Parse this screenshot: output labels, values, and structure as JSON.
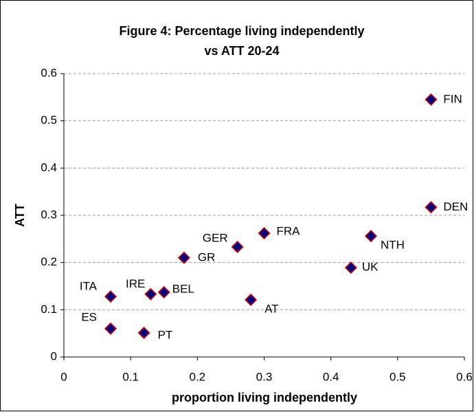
{
  "chart_data": {
    "type": "scatter",
    "title": [
      "Figure 4: Percentage living independently",
      "vs ATT 20-24"
    ],
    "x_label": "proportion living independently",
    "y_label": "ATT",
    "xlim": [
      0,
      0.6
    ],
    "xticks": [
      0,
      0.1,
      0.2,
      0.3,
      0.4,
      0.5,
      0.6
    ],
    "ylim": [
      0,
      0.6
    ],
    "yticks": [
      0,
      0.1,
      0.2,
      0.3,
      0.4,
      0.5,
      0.6
    ],
    "grid": true,
    "color": "#000080",
    "edge_color": "#cc0000",
    "points": [
      {
        "label": "FIN",
        "x": 0.55,
        "y": 0.545
      },
      {
        "label": "DEN",
        "x": 0.55,
        "y": 0.317
      },
      {
        "label": "NTH",
        "x": 0.46,
        "y": 0.256
      },
      {
        "label": "UK",
        "x": 0.43,
        "y": 0.189
      },
      {
        "label": "FRA",
        "x": 0.3,
        "y": 0.262
      },
      {
        "label": "GER",
        "x": 0.26,
        "y": 0.233
      },
      {
        "label": "GR",
        "x": 0.18,
        "y": 0.21
      },
      {
        "label": "ITA",
        "x": 0.07,
        "y": 0.128
      },
      {
        "label": "IRE",
        "x": 0.13,
        "y": 0.133
      },
      {
        "label": "BEL",
        "x": 0.15,
        "y": 0.137
      },
      {
        "label": "AT",
        "x": 0.28,
        "y": 0.121
      },
      {
        "label": "ES",
        "x": 0.07,
        "y": 0.06
      },
      {
        "label": "PT",
        "x": 0.12,
        "y": 0.051
      }
    ]
  }
}
